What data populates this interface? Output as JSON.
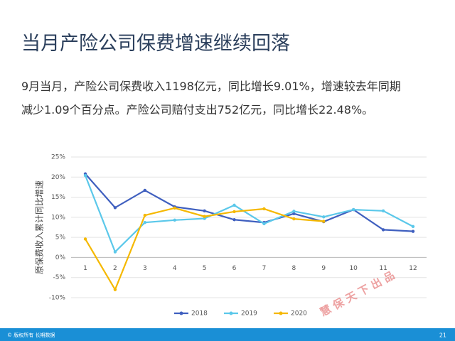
{
  "slide": {
    "title": "当月产险公司保费增速继续回落",
    "paragraph": [
      "9月当月，产险公司保费收入1198亿元，同比增长9.01%，增速较去年同期",
      "减少1.09个百分点。产险公司赔付支出752亿元，同比增长22.48%。"
    ],
    "watermark": "慧 保 天 下 出 品",
    "footer": "© 版权所有 长期数据",
    "page": "21"
  },
  "chart_data": {
    "type": "line",
    "ylabel": "原保费收入累计同比增速",
    "categories": [
      "1",
      "2",
      "3",
      "4",
      "5",
      "6",
      "7",
      "8",
      "9",
      "10",
      "11",
      "12"
    ],
    "series": [
      {
        "name": "2018",
        "color": "#3f5fbf",
        "values": [
          20.8,
          12.4,
          16.7,
          12.6,
          11.6,
          9.4,
          8.7,
          10.9,
          8.9,
          11.9,
          6.9,
          6.5
        ]
      },
      {
        "name": "2019",
        "color": "#5bc8ea",
        "values": [
          20.4,
          1.4,
          8.7,
          9.3,
          9.7,
          13.0,
          8.4,
          11.5,
          10.1,
          11.9,
          11.6,
          7.7
        ]
      },
      {
        "name": "2020",
        "color": "#f5b800",
        "values": [
          4.6,
          -8.0,
          10.5,
          12.3,
          10.2,
          11.4,
          12.1,
          9.6,
          9.0,
          null,
          null,
          null
        ]
      }
    ],
    "ylim": [
      -10,
      25
    ],
    "yticks": [
      {
        "value": -10,
        "label": "-10%"
      },
      {
        "value": -5,
        "label": "-5%"
      },
      {
        "value": 0,
        "label": "0%"
      },
      {
        "value": 5,
        "label": "5%"
      },
      {
        "value": 10,
        "label": "10%"
      },
      {
        "value": 15,
        "label": "15%"
      },
      {
        "value": 20,
        "label": "20%"
      },
      {
        "value": 25,
        "label": "25%"
      }
    ],
    "grid": true,
    "legend": "bottom"
  }
}
